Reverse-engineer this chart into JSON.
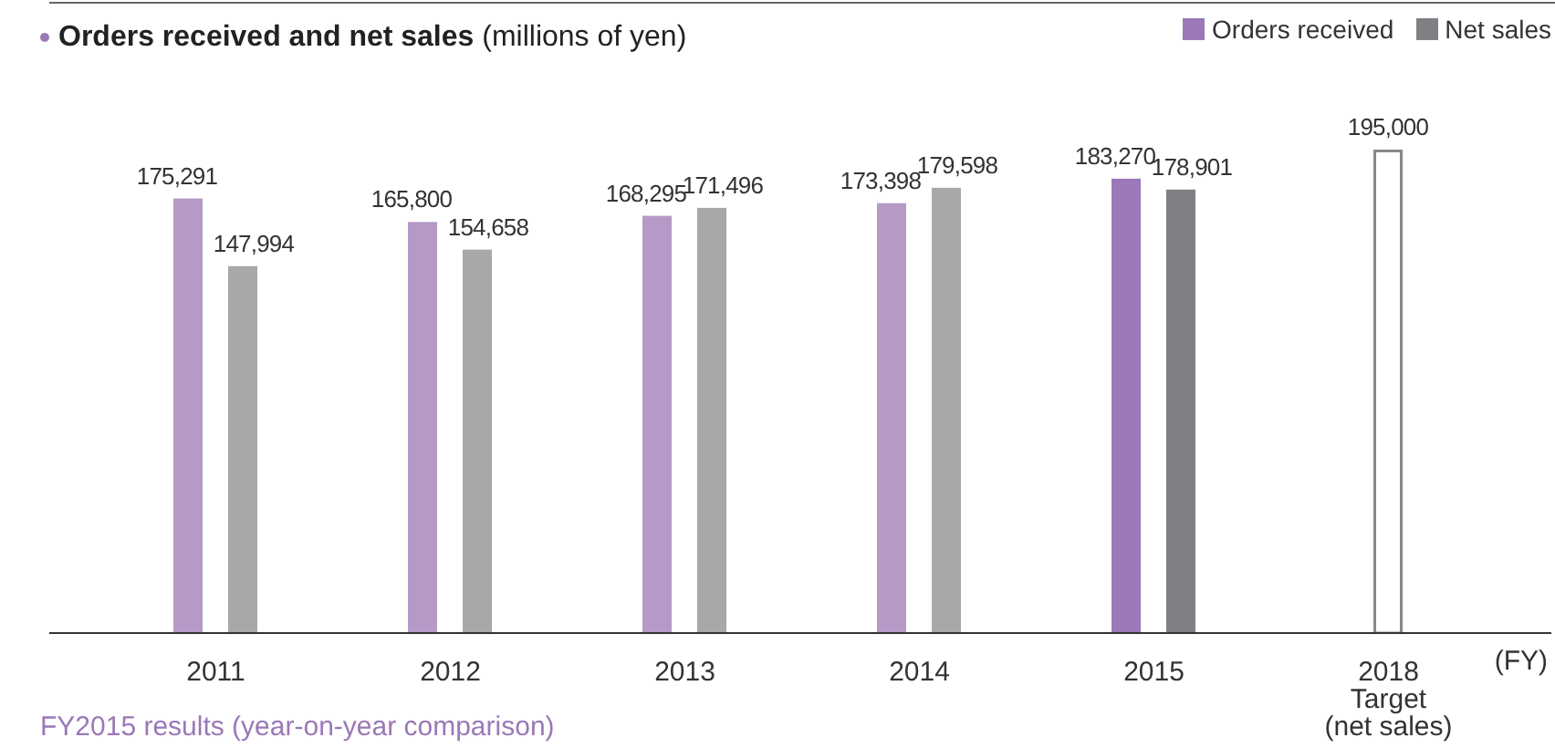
{
  "chart_data": {
    "type": "bar",
    "title": "Orders received and net sales",
    "subtitle": "(millions of yen)",
    "xlabel": "(FY)",
    "categories": [
      "2011",
      "2012",
      "2013",
      "2014",
      "2015",
      "2018\nTarget\n(net sales)"
    ],
    "series": [
      {
        "name": "Orders received",
        "color": "#9b78b8",
        "colors": [
          "#b59ac8",
          "#b59ac8",
          "#b59ac8",
          "#b59ac8",
          "#9b78b8",
          null
        ],
        "values": [
          175291,
          165800,
          168295,
          173398,
          183270,
          null
        ],
        "value_labels": [
          "175,291",
          "165,800",
          "168,295",
          "173,398",
          "183,270",
          null
        ]
      },
      {
        "name": "Net sales",
        "color": "#7f8083",
        "colors": [
          "#a7a8aa",
          "#a7a8aa",
          "#a7a8aa",
          "#a7a8aa",
          "#7f8083",
          "#ffffff"
        ],
        "values": [
          147994,
          154658,
          171496,
          179598,
          178901,
          195000
        ],
        "value_labels": [
          "147,994",
          "154,658",
          "171,496",
          "179,598",
          "178,901",
          "195,000"
        ]
      }
    ],
    "legend": "top right",
    "annotations": [
      "FY2015 results (year-on-year comparison)"
    ]
  }
}
